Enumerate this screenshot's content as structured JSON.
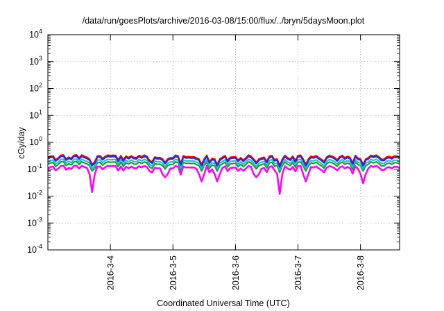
{
  "chart_data": {
    "type": "line",
    "title": "/data/run/goesPlots/archive/2016-03-08/15:00/flux/../bryn/5daysMoon.plot",
    "xlabel": "Coordinated Universal Time (UTC)",
    "ylabel": "cGy/day",
    "yscale": "log",
    "ylim": [
      0.0001,
      10000
    ],
    "y_ticks": [
      {
        "value": 0.0001,
        "base": "10",
        "exp": "-4"
      },
      {
        "value": 0.001,
        "base": "10",
        "exp": "-3"
      },
      {
        "value": 0.01,
        "base": "10",
        "exp": "-2"
      },
      {
        "value": 0.1,
        "base": "10",
        "exp": "-1"
      },
      {
        "value": 1,
        "base": "10",
        "exp": "0"
      },
      {
        "value": 10,
        "base": "10",
        "exp": "1"
      },
      {
        "value": 100,
        "base": "10",
        "exp": "2"
      },
      {
        "value": 1000,
        "base": "10",
        "exp": "3"
      },
      {
        "value": 10000,
        "base": "10",
        "exp": "4"
      }
    ],
    "xlim": [
      "2016-03-03T00:00",
      "2016-03-08T15:00"
    ],
    "x_ticks": [
      "2016-3-4",
      "2016-3-5",
      "2016-3-6",
      "2016-3-7",
      "2016-3-8"
    ],
    "x_tick_dates": [
      "2016-03-04",
      "2016-03-05",
      "2016-03-06",
      "2016-03-07",
      "2016-03-08"
    ],
    "grid": true,
    "legend": "none",
    "series": [
      {
        "color": "#ff0000",
        "level": 0.3
      },
      {
        "color": "#1e2bd6",
        "level": 0.27
      },
      {
        "color": "#22c0cf",
        "level": 0.21
      },
      {
        "color": "#1aa032",
        "level": 0.17
      },
      {
        "color": "#ff00ff",
        "level": 0.12
      }
    ],
    "dips": [
      {
        "date": "2016-03-03T17:00",
        "magenta": 0.014,
        "others_factor": 0.5
      },
      {
        "date": "2016-03-04T21:00",
        "magenta": 0.05,
        "others_factor": 0.6
      },
      {
        "date": "2016-03-05T11:00",
        "magenta": 0.035,
        "others_factor": 0.5
      },
      {
        "date": "2016-03-05T17:00",
        "magenta": 0.035,
        "others_factor": 0.5
      },
      {
        "date": "2016-03-06T08:00",
        "magenta": 0.05,
        "others_factor": 0.6
      },
      {
        "date": "2016-03-06T17:00",
        "magenta": 0.012,
        "others_factor": 0.45
      },
      {
        "date": "2016-03-07T03:00",
        "magenta": 0.035,
        "others_factor": 0.5
      },
      {
        "date": "2016-03-08T01:00",
        "magenta": 0.03,
        "others_factor": 0.5
      }
    ]
  }
}
